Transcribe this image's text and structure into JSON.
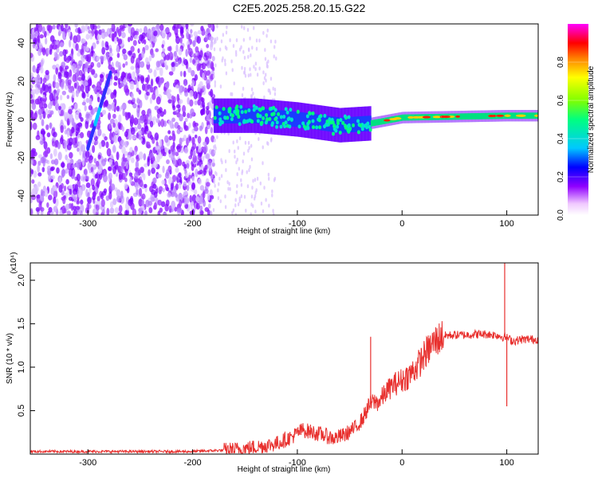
{
  "chart_data": [
    {
      "type": "heatmap",
      "title": "C2E5.2025.258.20.15.G22",
      "xlabel": "Height of straight line (km)",
      "ylabel": "Frequency (Hz)",
      "xlim": [
        -355,
        130
      ],
      "ylim": [
        -50,
        50
      ],
      "xticks": [
        -300,
        -200,
        -100,
        0,
        100
      ],
      "yticks": [
        -40,
        -20,
        0,
        20,
        40
      ],
      "colorbar": {
        "label": "Normalized spectral amplitude",
        "range": [
          0,
          1
        ],
        "ticks": [
          0.0,
          0.2,
          0.4,
          0.6,
          0.8
        ],
        "colors": [
          "#ffffff",
          "#e8c8ff",
          "#8000ff",
          "#0000ff",
          "#00c8ff",
          "#00ff80",
          "#80ff00",
          "#ffff00",
          "#ff8000",
          "#ff0000",
          "#ff00ff"
        ]
      },
      "features": {
        "noise_region_km": [
          -355,
          -180
        ],
        "sparse_region_km": [
          -180,
          -120
        ],
        "signal_track": [
          {
            "x": -180,
            "y": 2
          },
          {
            "x": -140,
            "y": 2
          },
          {
            "x": -100,
            "y": 0
          },
          {
            "x": -60,
            "y": -3
          },
          {
            "x": -30,
            "y": -2
          },
          {
            "x": 0,
            "y": 1
          },
          {
            "x": 50,
            "y": 1.5
          },
          {
            "x": 100,
            "y": 2
          },
          {
            "x": 130,
            "y": 2
          }
        ],
        "diagonal_streak": {
          "x_start": -300,
          "y_start": -15,
          "x_end": -278,
          "y_end": 25
        }
      }
    },
    {
      "type": "line",
      "xlabel": "Height of straight line (km)",
      "ylabel": "SNR (10 * v/v)",
      "y_multiplier": "(x10⁴)",
      "xlim": [
        -355,
        130
      ],
      "ylim": [
        0,
        2.2
      ],
      "xticks": [
        -300,
        -200,
        -100,
        0,
        100
      ],
      "yticks": [
        0.5,
        1.0,
        1.5,
        2.0
      ],
      "series": [
        {
          "color": "#e8302e",
          "points": [
            [
              -355,
              0.03
            ],
            [
              -300,
              0.03
            ],
            [
              -250,
              0.03
            ],
            [
              -200,
              0.03
            ],
            [
              -180,
              0.04
            ],
            [
              -160,
              0.05
            ],
            [
              -140,
              0.08
            ],
            [
              -120,
              0.12
            ],
            [
              -105,
              0.2
            ],
            [
              -95,
              0.28
            ],
            [
              -85,
              0.25
            ],
            [
              -75,
              0.22
            ],
            [
              -65,
              0.18
            ],
            [
              -55,
              0.22
            ],
            [
              -45,
              0.3
            ],
            [
              -38,
              0.4
            ],
            [
              -32,
              0.55
            ],
            [
              -28,
              0.6
            ],
            [
              -22,
              0.6
            ],
            [
              -15,
              0.72
            ],
            [
              -8,
              0.8
            ],
            [
              0,
              0.85
            ],
            [
              8,
              0.92
            ],
            [
              15,
              1.02
            ],
            [
              22,
              1.15
            ],
            [
              30,
              1.28
            ],
            [
              38,
              1.36
            ],
            [
              50,
              1.37
            ],
            [
              60,
              1.37
            ],
            [
              70,
              1.38
            ],
            [
              80,
              1.38
            ],
            [
              90,
              1.37
            ],
            [
              96,
              1.35
            ],
            [
              100,
              1.34
            ],
            [
              106,
              1.3
            ],
            [
              115,
              1.32
            ],
            [
              130,
              1.32
            ]
          ]
        }
      ],
      "spikes": [
        {
          "x": -30,
          "y": 1.35
        },
        {
          "x": 98,
          "y": 2.2
        },
        {
          "x": 100,
          "y": 0.55
        }
      ]
    }
  ]
}
